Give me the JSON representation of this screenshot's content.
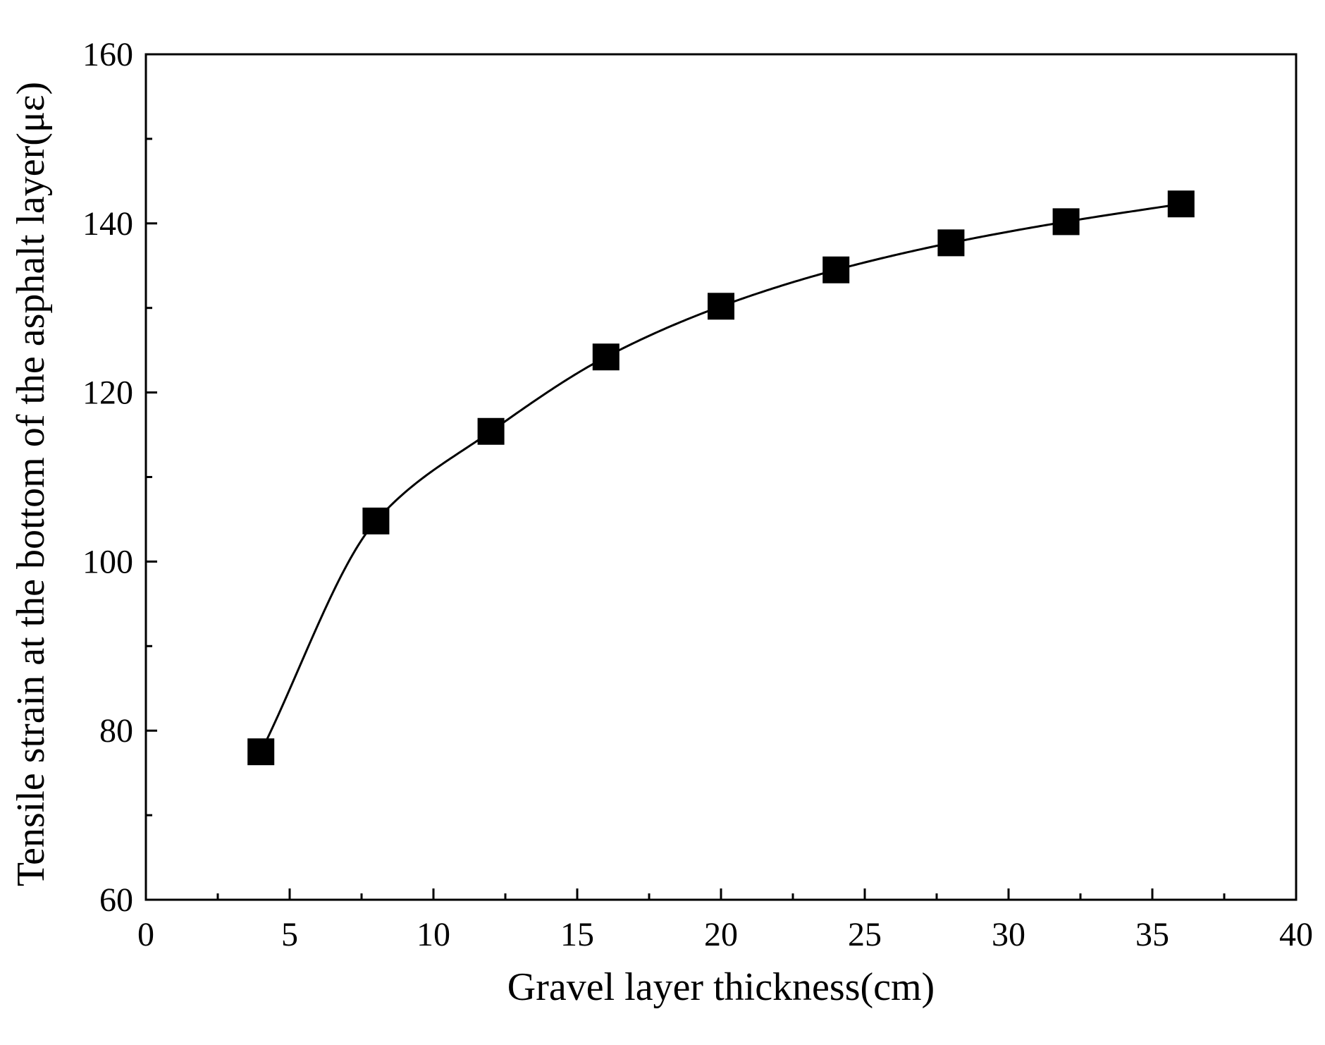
{
  "chart_data": {
    "type": "scatter",
    "title": "",
    "xlabel": "Gravel layer thickness(cm)",
    "ylabel": "Tensile strain at the bottom of the asphalt layer(με)",
    "xlim": [
      0,
      40
    ],
    "ylim": [
      60,
      160
    ],
    "x_ticks": [
      "0",
      "5",
      "10",
      "15",
      "20",
      "25",
      "30",
      "35",
      "40"
    ],
    "y_ticks": [
      "60",
      "80",
      "100",
      "120",
      "140",
      "160"
    ],
    "grid": false,
    "legend": "none",
    "series": [
      {
        "marker": "filled-square",
        "color": "#000000",
        "fit_line": true,
        "x": [
          4,
          8,
          12,
          16,
          20,
          24,
          28,
          32,
          36
        ],
        "y": [
          77.5,
          104.8,
          115.4,
          124.2,
          130.2,
          134.5,
          137.7,
          140.2,
          142.3
        ]
      }
    ]
  }
}
